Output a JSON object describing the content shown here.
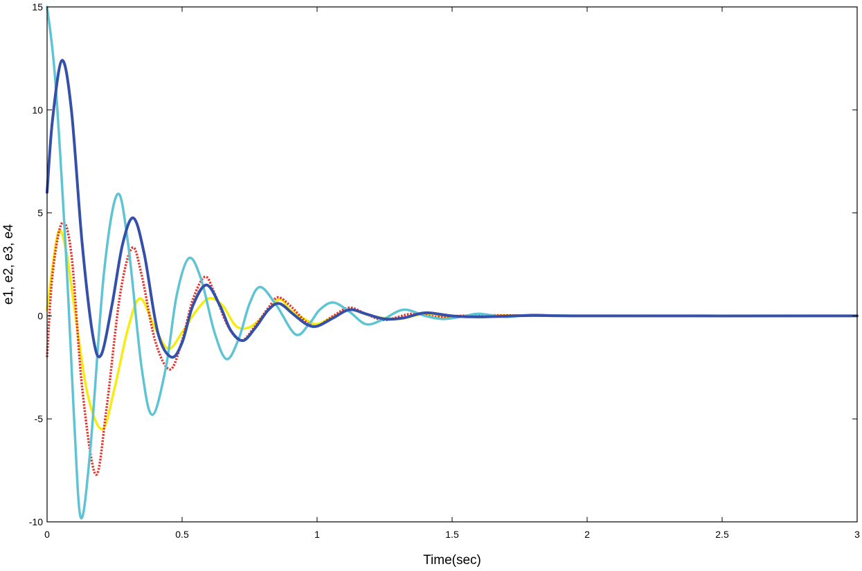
{
  "chart_data": {
    "type": "line",
    "title": "",
    "xlabel": "Time(sec)",
    "ylabel": "e1, e2, e3, e4",
    "xlim": [
      0,
      3
    ],
    "ylim": [
      -10,
      15
    ],
    "grid": false,
    "legend": "none",
    "x_ticks": [
      "0",
      "0.5",
      "1",
      "1.5",
      "2",
      "2.5",
      "3"
    ],
    "y_ticks": [
      "-10",
      "-5",
      "0",
      "5",
      "10",
      "15"
    ],
    "series": [
      {
        "color": "#f5ec12",
        "style": "solid",
        "points": [
          [
            0,
            0.3
          ],
          [
            0.04,
            4.0
          ],
          [
            0.07,
            3.2
          ],
          [
            0.1,
            0.5
          ],
          [
            0.15,
            -3.8
          ],
          [
            0.205,
            -5.5
          ],
          [
            0.25,
            -3.5
          ],
          [
            0.3,
            -0.6
          ],
          [
            0.345,
            0.85
          ],
          [
            0.4,
            -0.6
          ],
          [
            0.45,
            -1.6
          ],
          [
            0.5,
            -0.8
          ],
          [
            0.55,
            0.2
          ],
          [
            0.6,
            0.85
          ],
          [
            0.65,
            0.5
          ],
          [
            0.7,
            -0.5
          ],
          [
            0.75,
            -0.55
          ],
          [
            0.8,
            0.0
          ],
          [
            0.86,
            0.8
          ],
          [
            0.9,
            0.3
          ],
          [
            0.96,
            -0.2
          ],
          [
            1.0,
            -0.4
          ],
          [
            1.05,
            -0.1
          ],
          [
            1.12,
            0.3
          ],
          [
            1.2,
            0.0
          ],
          [
            1.3,
            -0.15
          ],
          [
            1.4,
            0.1
          ],
          [
            1.5,
            -0.05
          ],
          [
            1.7,
            0.02
          ],
          [
            2.0,
            0.0
          ],
          [
            3.0,
            0.0
          ]
        ]
      },
      {
        "color": "#e8322a",
        "style": "dotted",
        "points": [
          [
            0,
            -2.0
          ],
          [
            0.02,
            2.0
          ],
          [
            0.055,
            4.5
          ],
          [
            0.09,
            3.0
          ],
          [
            0.13,
            -3.5
          ],
          [
            0.18,
            -7.7
          ],
          [
            0.22,
            -4.5
          ],
          [
            0.27,
            1.0
          ],
          [
            0.315,
            3.3
          ],
          [
            0.35,
            2.0
          ],
          [
            0.4,
            -1.2
          ],
          [
            0.455,
            -2.6
          ],
          [
            0.5,
            -1.2
          ],
          [
            0.54,
            0.8
          ],
          [
            0.585,
            1.9
          ],
          [
            0.62,
            1.1
          ],
          [
            0.67,
            -0.5
          ],
          [
            0.72,
            -1.2
          ],
          [
            0.77,
            -0.5
          ],
          [
            0.82,
            0.4
          ],
          [
            0.855,
            0.9
          ],
          [
            0.9,
            0.5
          ],
          [
            0.96,
            -0.3
          ],
          [
            1.0,
            -0.5
          ],
          [
            1.06,
            0.0
          ],
          [
            1.12,
            0.4
          ],
          [
            1.18,
            0.1
          ],
          [
            1.25,
            -0.2
          ],
          [
            1.35,
            0.1
          ],
          [
            1.45,
            -0.05
          ],
          [
            1.6,
            0.03
          ],
          [
            2.0,
            0.0
          ],
          [
            3.0,
            0.0
          ]
        ]
      },
      {
        "color": "#5ec4d4",
        "style": "solid",
        "points": [
          [
            0,
            15.0
          ],
          [
            0.03,
            11.5
          ],
          [
            0.07,
            3.0
          ],
          [
            0.1,
            -5.0
          ],
          [
            0.125,
            -9.8
          ],
          [
            0.16,
            -6.5
          ],
          [
            0.21,
            2.0
          ],
          [
            0.26,
            5.9
          ],
          [
            0.3,
            3.5
          ],
          [
            0.35,
            -2.5
          ],
          [
            0.39,
            -4.8
          ],
          [
            0.44,
            -2.5
          ],
          [
            0.48,
            1.0
          ],
          [
            0.525,
            2.8
          ],
          [
            0.57,
            1.8
          ],
          [
            0.62,
            -0.8
          ],
          [
            0.665,
            -2.1
          ],
          [
            0.71,
            -1.1
          ],
          [
            0.75,
            0.6
          ],
          [
            0.79,
            1.4
          ],
          [
            0.85,
            0.5
          ],
          [
            0.92,
            -0.9
          ],
          [
            0.97,
            -0.4
          ],
          [
            1.01,
            0.3
          ],
          [
            1.06,
            0.65
          ],
          [
            1.12,
            0.2
          ],
          [
            1.18,
            -0.4
          ],
          [
            1.24,
            -0.2
          ],
          [
            1.32,
            0.3
          ],
          [
            1.4,
            0.0
          ],
          [
            1.47,
            -0.15
          ],
          [
            1.55,
            0.0
          ],
          [
            1.6,
            0.1
          ],
          [
            1.7,
            -0.05
          ],
          [
            1.8,
            0.05
          ],
          [
            2.0,
            0.0
          ],
          [
            3.0,
            0.0
          ]
        ]
      },
      {
        "color": "#3450a8",
        "style": "solid",
        "points": [
          [
            0,
            6.0
          ],
          [
            0.02,
            9.5
          ],
          [
            0.055,
            12.4
          ],
          [
            0.09,
            10.0
          ],
          [
            0.13,
            3.5
          ],
          [
            0.17,
            -1.0
          ],
          [
            0.2,
            -1.9
          ],
          [
            0.24,
            0.5
          ],
          [
            0.28,
            3.5
          ],
          [
            0.32,
            4.75
          ],
          [
            0.36,
            3.0
          ],
          [
            0.41,
            -0.8
          ],
          [
            0.46,
            -2.0
          ],
          [
            0.5,
            -1.3
          ],
          [
            0.54,
            0.5
          ],
          [
            0.59,
            1.5
          ],
          [
            0.64,
            0.5
          ],
          [
            0.68,
            -0.7
          ],
          [
            0.725,
            -1.2
          ],
          [
            0.77,
            -0.6
          ],
          [
            0.82,
            0.3
          ],
          [
            0.86,
            0.6
          ],
          [
            0.91,
            0.1
          ],
          [
            0.96,
            -0.4
          ],
          [
            1.0,
            -0.5
          ],
          [
            1.06,
            -0.1
          ],
          [
            1.12,
            0.3
          ],
          [
            1.18,
            0.1
          ],
          [
            1.25,
            -0.15
          ],
          [
            1.32,
            -0.1
          ],
          [
            1.4,
            0.15
          ],
          [
            1.5,
            0.0
          ],
          [
            1.6,
            -0.05
          ],
          [
            1.8,
            0.02
          ],
          [
            2.0,
            0.0
          ],
          [
            3.0,
            0.0
          ]
        ]
      }
    ]
  }
}
